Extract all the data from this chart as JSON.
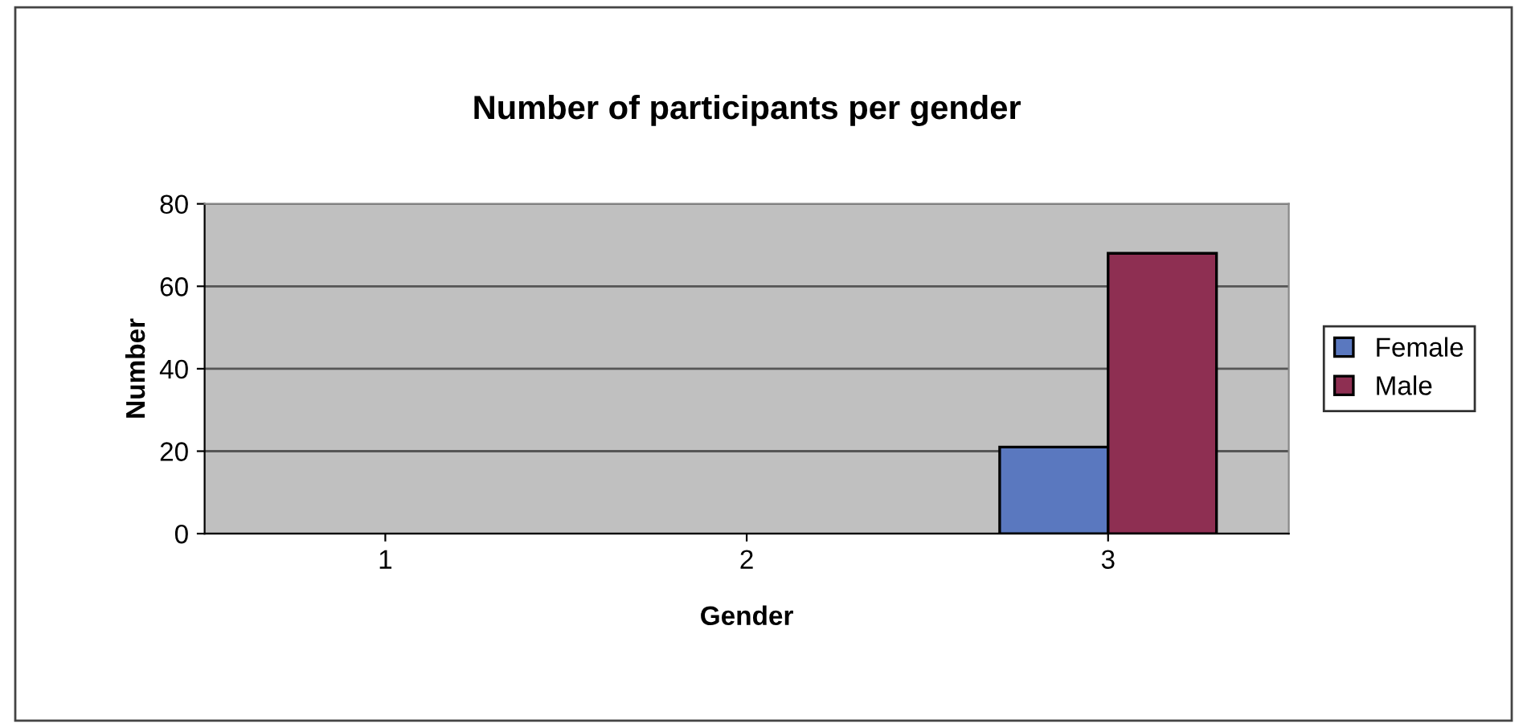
{
  "chart_data": {
    "type": "bar",
    "title": "Number of participants per gender",
    "xlabel": "Gender",
    "ylabel": "Number",
    "categories": [
      "1",
      "2",
      "3"
    ],
    "series": [
      {
        "name": "Female",
        "color": "#5a78bf",
        "values": [
          null,
          null,
          21
        ]
      },
      {
        "name": "Male",
        "color": "#8e2f52",
        "values": [
          null,
          null,
          68
        ]
      }
    ],
    "ylim": [
      0,
      80
    ],
    "yticks": [
      0,
      20,
      40,
      60,
      80
    ],
    "grid": "y",
    "legend": "right"
  }
}
